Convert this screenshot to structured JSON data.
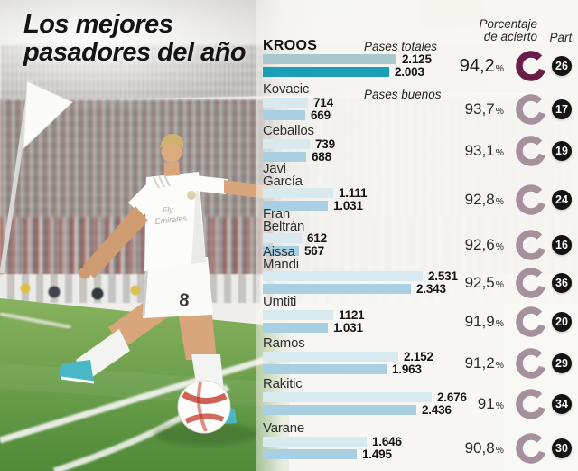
{
  "title": {
    "line1": "Los mejores",
    "line2": "pasadores del año"
  },
  "header": {
    "accuracy_line1": "Porcentaje",
    "accuracy_line2": "de acierto",
    "matches": "Part."
  },
  "legend": {
    "total_label": "Pases totales",
    "good_label": "Pases buenos",
    "percent_suffix": "%"
  },
  "photo": {
    "jersey_sponsor_line1": "Fly",
    "jersey_sponsor_line2": "Emirates",
    "shorts_number": "8"
  },
  "colors": {
    "donut_highlight": "#6a1c48",
    "donut_regular": "#a5909c",
    "bar_total_highlight": "#a9c8cd",
    "bar_good_highlight": "#1a9fb4",
    "bar_total_regular": "#d9e9f0",
    "bar_good_regular": "#a9cfe2",
    "badge_bg": "#131313"
  },
  "chart_data": {
    "type": "bar",
    "orientation": "horizontal",
    "title": "Los mejores pasadores del año",
    "series_labels": [
      "Pases totales",
      "Pases buenos"
    ],
    "columns": [
      "Porcentaje de acierto",
      "Part."
    ],
    "value_axis_max": 2676,
    "players": [
      {
        "name_lines": [
          "KROOS"
        ],
        "total": 2125,
        "good": 2003,
        "total_display": "2.125",
        "good_display": "2.003",
        "accuracy_display": "94,2",
        "matches": "26",
        "highlight": true
      },
      {
        "name_lines": [
          "Kovacic"
        ],
        "total": 714,
        "good": 669,
        "total_display": "714",
        "good_display": "669",
        "accuracy_display": "93,7",
        "matches": "17",
        "highlight": false
      },
      {
        "name_lines": [
          "Ceballos"
        ],
        "total": 739,
        "good": 688,
        "total_display": "739",
        "good_display": "688",
        "accuracy_display": "93,1",
        "matches": "19",
        "highlight": false
      },
      {
        "name_lines": [
          "Javi",
          "García"
        ],
        "total": 1111,
        "good": 1031,
        "total_display": "1.111",
        "good_display": "1.031",
        "accuracy_display": "92,8",
        "matches": "24",
        "highlight": false
      },
      {
        "name_lines": [
          "Fran",
          "Beltrán"
        ],
        "total": 612,
        "good": 567,
        "total_display": "612",
        "good_display": "567",
        "accuracy_display": "92,6",
        "matches": "16",
        "highlight": false
      },
      {
        "name_lines": [
          "Aissa",
          "Mandi"
        ],
        "total": 2531,
        "good": 2343,
        "total_display": "2.531",
        "good_display": "2.343",
        "accuracy_display": "92,5",
        "matches": "36",
        "highlight": false
      },
      {
        "name_lines": [
          "Umtiti"
        ],
        "total": 1121,
        "good": 1031,
        "total_display": "1121",
        "good_display": "1.031",
        "accuracy_display": "91,9",
        "matches": "20",
        "highlight": false
      },
      {
        "name_lines": [
          "Ramos"
        ],
        "total": 2152,
        "good": 1963,
        "total_display": "2.152",
        "good_display": "1.963",
        "accuracy_display": "91,2",
        "matches": "29",
        "highlight": false
      },
      {
        "name_lines": [
          "Rakitic"
        ],
        "total": 2676,
        "good": 2436,
        "total_display": "2.676",
        "good_display": "2.436",
        "accuracy_display": "91",
        "matches": "34",
        "highlight": false
      },
      {
        "name_lines": [
          "Varane"
        ],
        "total": 1646,
        "good": 1495,
        "total_display": "1.646",
        "good_display": "1.495",
        "accuracy_display": "90,8",
        "matches": "30",
        "highlight": false
      }
    ]
  }
}
